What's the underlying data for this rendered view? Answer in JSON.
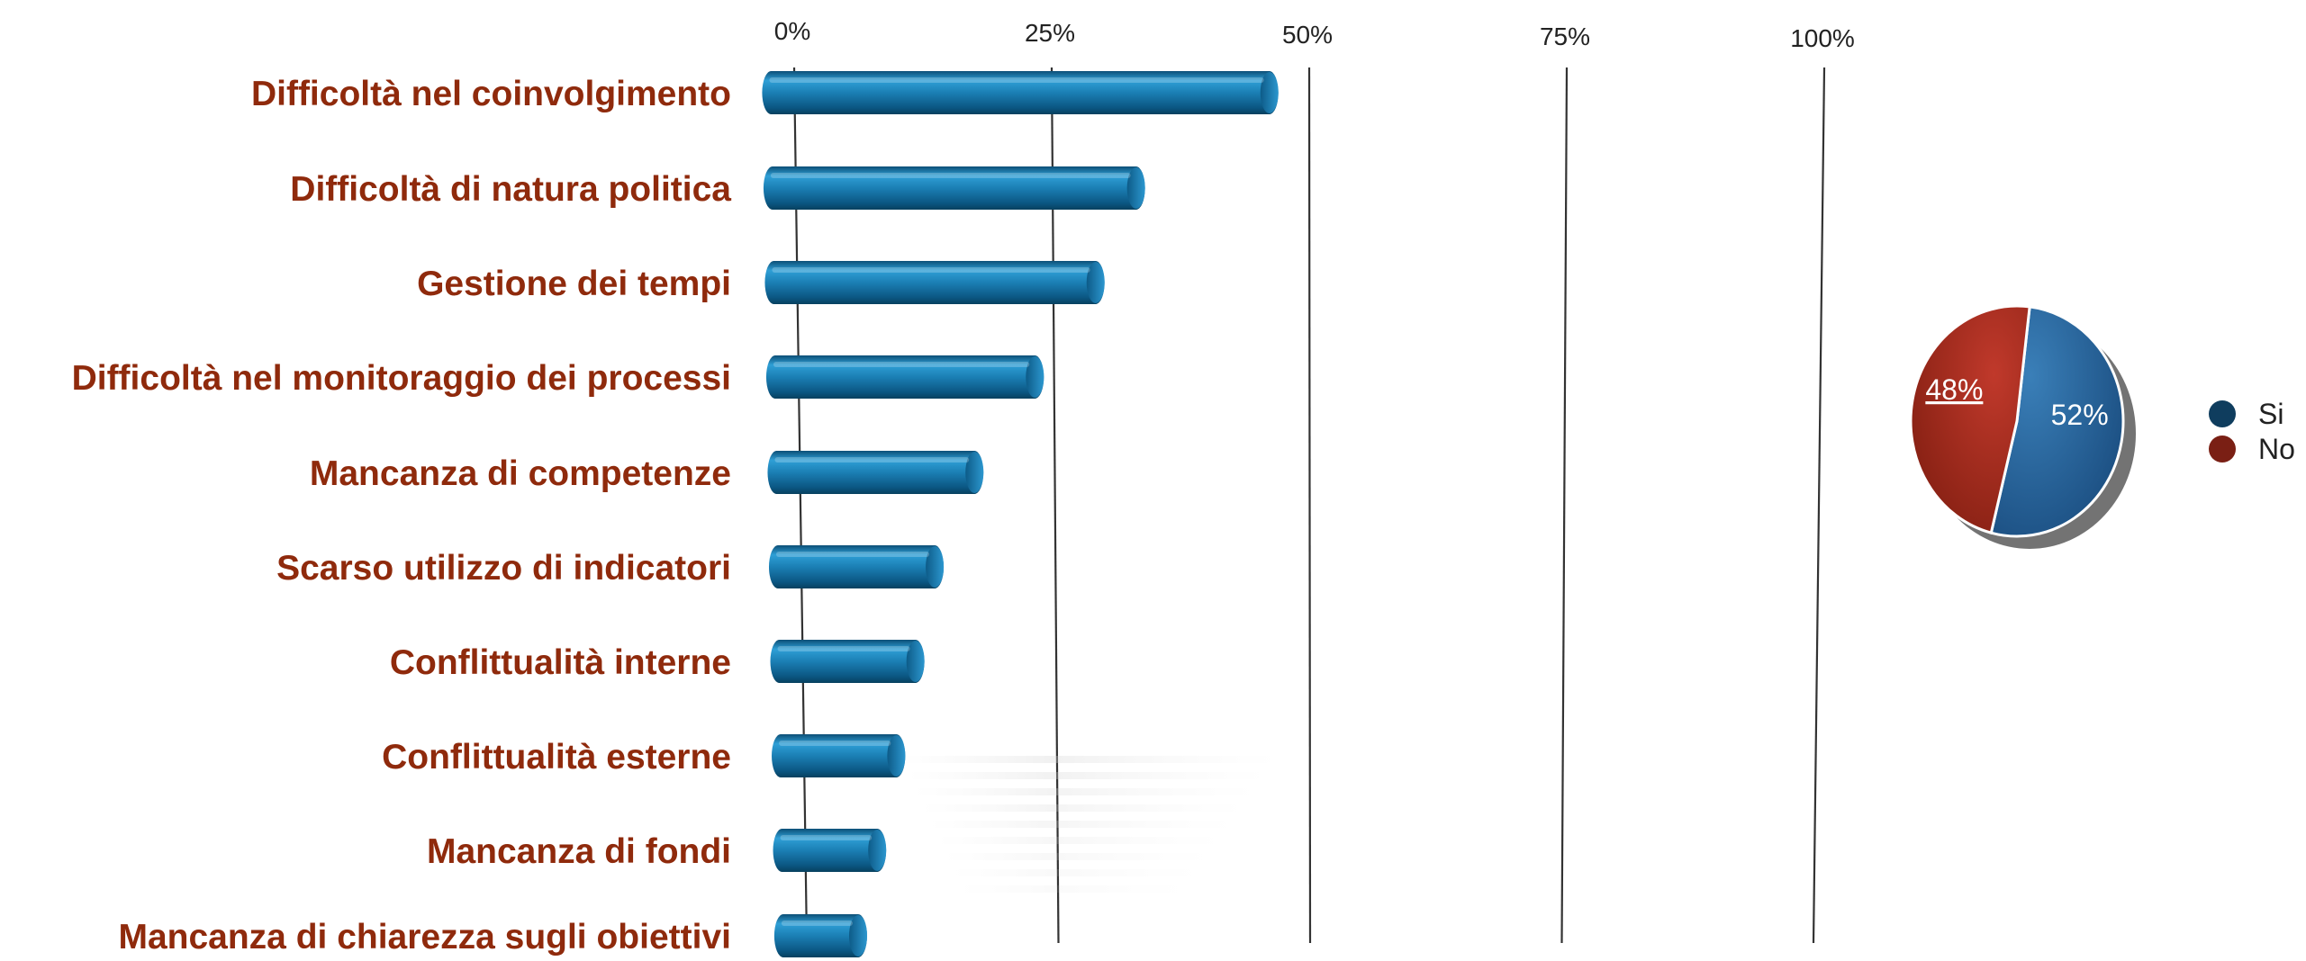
{
  "chart_data": [
    {
      "type": "bar",
      "orientation": "horizontal",
      "categories": [
        "Difficoltà nel coinvolgimento ",
        "Difficoltà di natura politica",
        "Gestione dei tempi ",
        "Difficoltà nel monitoraggio dei processi",
        "Mancanza di competenze",
        "Scarso utilizzo di indicatori ",
        "Conflittualità interne",
        "Conflittualità esterne",
        "Mancanza di fondi",
        "Mancanza di chiarezza sugli obiettivi"
      ],
      "values": [
        47,
        34,
        30,
        24,
        18,
        14,
        12,
        10,
        8,
        6
      ],
      "unit": "%",
      "xlim": [
        0,
        100
      ],
      "x_ticks": [
        "0%",
        "25%",
        "50%",
        "75%",
        "100%"
      ],
      "grid": true,
      "colors": {
        "bar": "#1b7fb4",
        "label": "#8f2a0c"
      }
    },
    {
      "type": "pie",
      "slices": [
        {
          "label": "Si",
          "value": 52,
          "display": "52%",
          "color": "#1f5c92"
        },
        {
          "label": "No",
          "value": 48,
          "display": "48%",
          "color": "#a32a16"
        }
      ],
      "legend": {
        "position": "right",
        "items": [
          "Si",
          "No"
        ],
        "colors": [
          "#0f3d5e",
          "#7a1f14"
        ]
      }
    }
  ]
}
